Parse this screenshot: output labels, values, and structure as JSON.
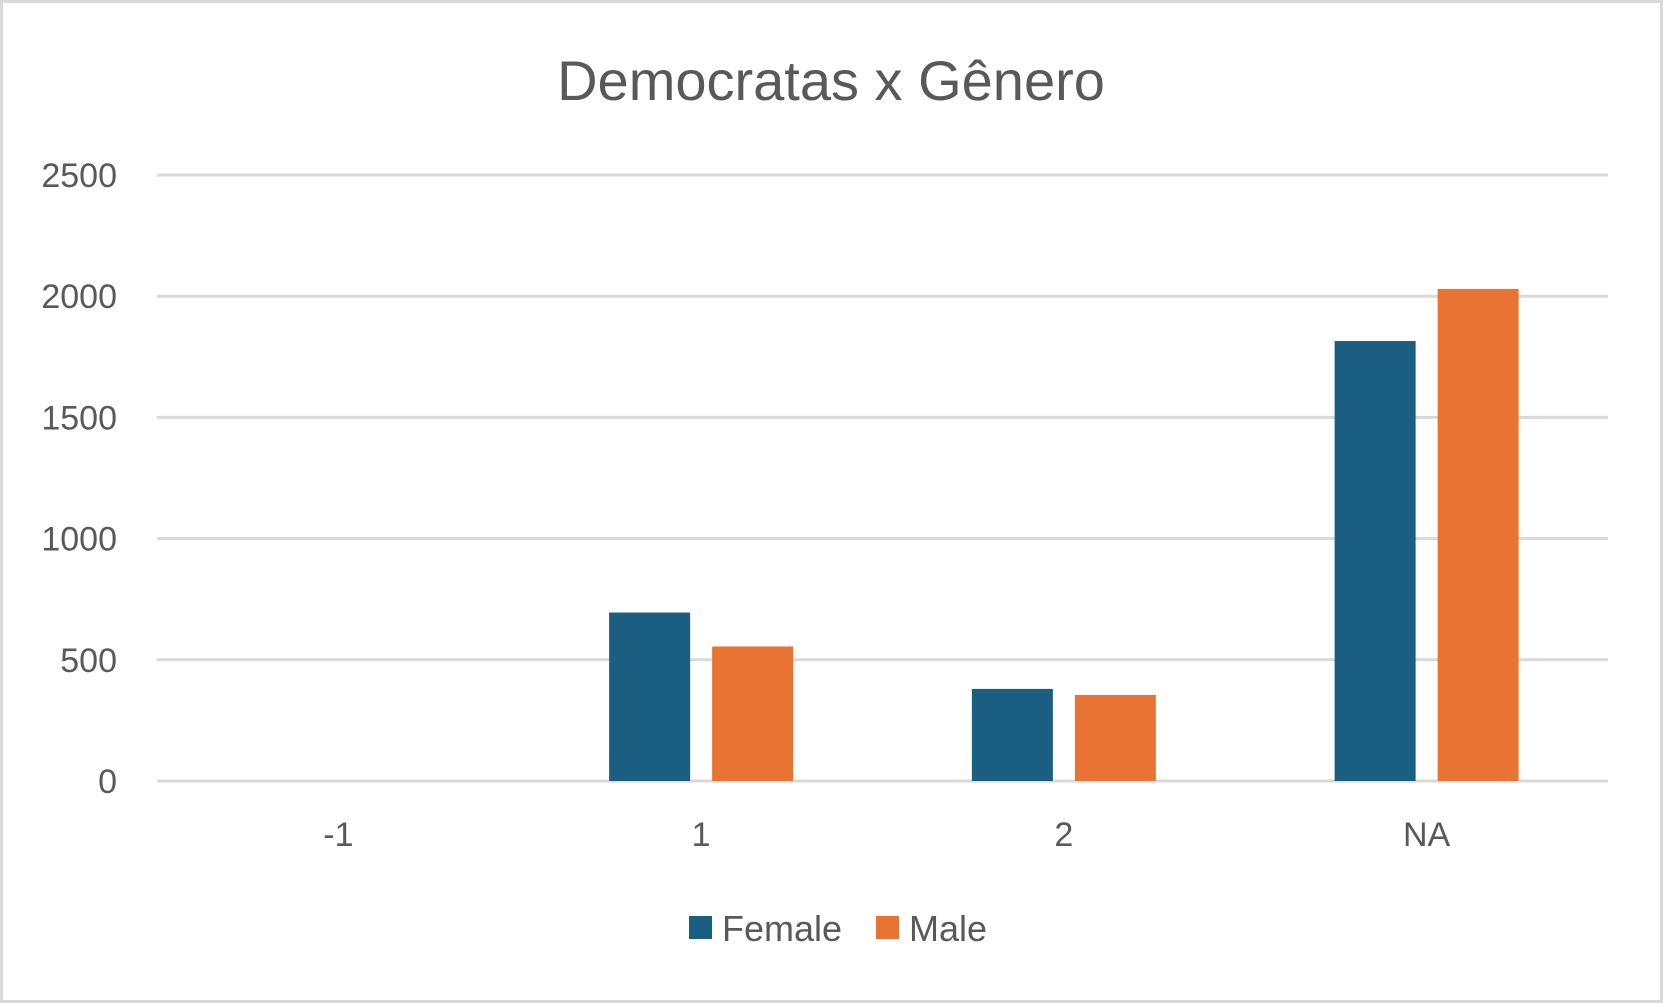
{
  "chart_data": {
    "type": "bar",
    "title": "Democratas x Gênero",
    "xlabel": "",
    "ylabel": "",
    "categories": [
      "-1",
      "1",
      "2",
      "NA"
    ],
    "series": [
      {
        "name": "Female",
        "color": "#1A5E82",
        "values": [
          0,
          695,
          380,
          1815
        ]
      },
      {
        "name": "Male",
        "color": "#E87332",
        "values": [
          0,
          555,
          355,
          2030
        ]
      }
    ],
    "ylim": [
      0,
      2500
    ],
    "yticks": [
      "0",
      "500",
      "1000",
      "1500",
      "2000",
      "2500"
    ],
    "grid": true,
    "legend_position": "bottom",
    "colors": {
      "gridline": "#D9D9D9",
      "text": "#595959",
      "border": "#D9D9D9"
    }
  }
}
